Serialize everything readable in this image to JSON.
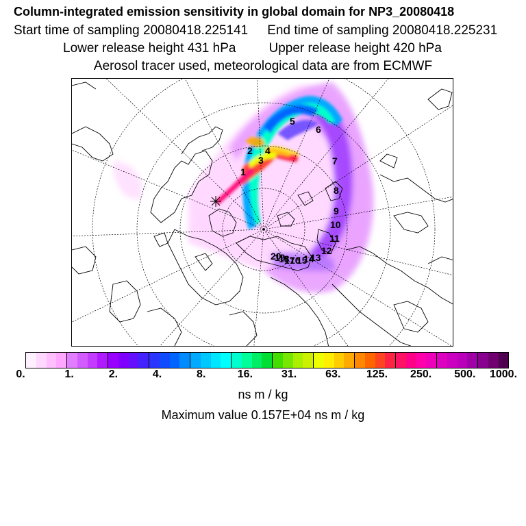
{
  "header": {
    "title": "Column-integrated emission sensitivity in global domain for NP3_20080418",
    "start_label": "Start time of sampling 20080418.225141",
    "end_label": "End time of sampling 20080418.225231",
    "lower_label": "Lower release height  431 hPa",
    "upper_label": "Upper release height  420 hPa",
    "info_line": "Aerosol tracer used, meteorological data are from ECMWF"
  },
  "map": {
    "trajectory_labels": [
      {
        "id": "1",
        "text": "1"
      },
      {
        "id": "2",
        "text": "2"
      },
      {
        "id": "3",
        "text": "3"
      },
      {
        "id": "4",
        "text": "4"
      },
      {
        "id": "5",
        "text": "5"
      },
      {
        "id": "6",
        "text": "6"
      },
      {
        "id": "7",
        "text": "7"
      },
      {
        "id": "8",
        "text": "8"
      },
      {
        "id": "9",
        "text": "9"
      },
      {
        "id": "10",
        "text": "10"
      },
      {
        "id": "11",
        "text": "11"
      },
      {
        "id": "12",
        "text": "12"
      },
      {
        "id": "13",
        "text": "13"
      },
      {
        "id": "14",
        "text": "14"
      },
      {
        "id": "15",
        "text": "15"
      },
      {
        "id": "16",
        "text": "16"
      },
      {
        "id": "17",
        "text": "17"
      },
      {
        "id": "18",
        "text": "18"
      },
      {
        "id": "19",
        "text": "19"
      },
      {
        "id": "20",
        "text": "20"
      }
    ]
  },
  "colorbar": {
    "colors": [
      "#fff0ff",
      "#ffd8ff",
      "#ffbfff",
      "#ffa6ff",
      "#e17dff",
      "#d35cff",
      "#c43cff",
      "#b01aff",
      "#9a00ff",
      "#8000ff",
      "#6410ff",
      "#4422ff",
      "#2a36ff",
      "#104cff",
      "#0064ff",
      "#008cff",
      "#00aaff",
      "#00c8ff",
      "#00e6ff",
      "#00ffff",
      "#00ffcc",
      "#00ff99",
      "#00ee66",
      "#00dd33",
      "#44dd00",
      "#77e600",
      "#aaee00",
      "#ccf000",
      "#eeff00",
      "#ffee00",
      "#ffcc00",
      "#ffaa00",
      "#ff8800",
      "#ff6600",
      "#ff4422",
      "#ff2244",
      "#ff1166",
      "#ff0088",
      "#ff00aa",
      "#ee00bb",
      "#dd00c0",
      "#cc00c0",
      "#bb00bb",
      "#a000a8",
      "#880090",
      "#700070",
      "#500050"
    ],
    "ticks": [
      "0.",
      "1.",
      "2.",
      "4.",
      "8.",
      "16.",
      "31.",
      "63.",
      "125.",
      "250.",
      "500.",
      "1000."
    ],
    "units": "ns m / kg",
    "max_label": "Maximum value  0.157E+04 ns m / kg"
  }
}
